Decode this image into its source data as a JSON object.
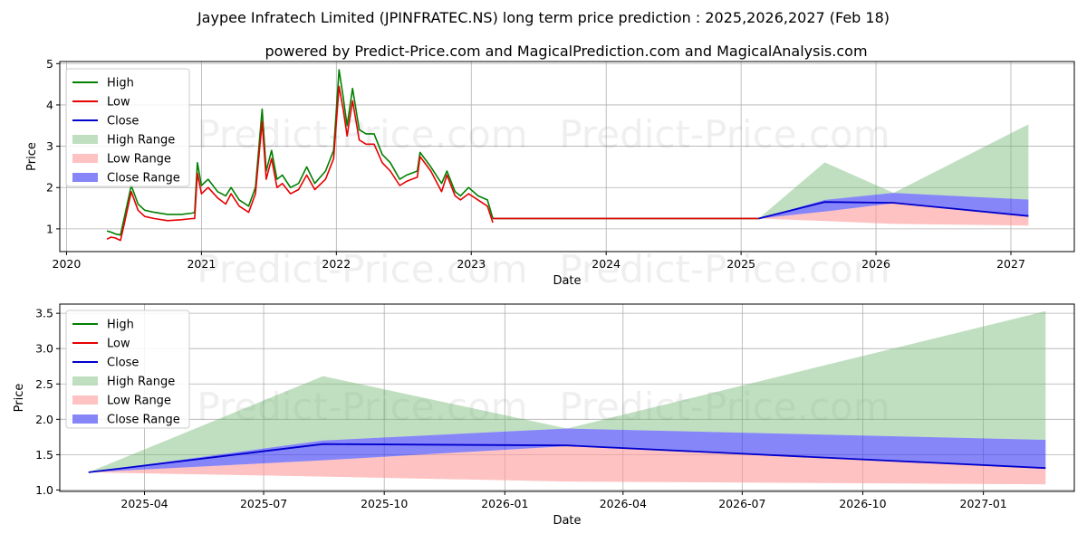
{
  "title_line1": "Jaypee Infratech Limited (JPINFRATEC.NS) long term price prediction : 2025,2026,2027 (Feb 18)",
  "title_line2": "powered by Predict-Price.com and MagicalPrediction.com and MagicalAnalysis.com",
  "watermark": "Predict-Price.com",
  "colors": {
    "high": "#008000",
    "low": "#e60000",
    "close": "#0000cc",
    "high_range": "#74b974",
    "low_range": "#ff9a9a",
    "close_range": "#3b3bf5",
    "grid": "#b0b0b0"
  },
  "legend": [
    "High",
    "Low",
    "Close",
    "High Range",
    "Low Range",
    "Close Range"
  ],
  "chart_data": [
    {
      "type": "line",
      "xlabel": "Date",
      "ylabel": "Price",
      "xlim": [
        2019.95,
        2027.47
      ],
      "ylim": [
        0.45,
        5.05
      ],
      "xticks": [
        2020,
        2021,
        2022,
        2023,
        2024,
        2025,
        2026,
        2027
      ],
      "xtick_labels": [
        "2020",
        "2021",
        "2022",
        "2023",
        "2024",
        "2025",
        "2026",
        "2027"
      ],
      "yticks": [
        1,
        2,
        3,
        4,
        5
      ],
      "ytick_labels": [
        "1",
        "2",
        "3",
        "4",
        "5"
      ],
      "history": {
        "x": [
          2020.3,
          2020.33,
          2020.36,
          2020.4,
          2020.43,
          2020.48,
          2020.53,
          2020.58,
          2020.65,
          2020.75,
          2020.85,
          2020.93,
          2020.95,
          2020.97,
          2021.0,
          2021.05,
          2021.12,
          2021.18,
          2021.22,
          2021.28,
          2021.35,
          2021.4,
          2021.45,
          2021.48,
          2021.52,
          2021.56,
          2021.6,
          2021.66,
          2021.72,
          2021.78,
          2021.84,
          2021.92,
          2021.98,
          2022.02,
          2022.05,
          2022.08,
          2022.12,
          2022.17,
          2022.22,
          2022.28,
          2022.34,
          2022.4,
          2022.47,
          2022.52,
          2022.6,
          2022.62,
          2022.7,
          2022.78,
          2022.82,
          2022.88,
          2022.92,
          2022.98,
          2023.05,
          2023.12,
          2023.16
        ],
        "high": [
          0.95,
          0.92,
          0.88,
          0.85,
          1.3,
          2.05,
          1.6,
          1.45,
          1.4,
          1.35,
          1.35,
          1.38,
          1.4,
          2.6,
          2.05,
          2.2,
          1.9,
          1.8,
          2.0,
          1.7,
          1.55,
          2.0,
          3.9,
          2.4,
          2.9,
          2.2,
          2.3,
          2.0,
          2.1,
          2.5,
          2.1,
          2.4,
          2.9,
          4.85,
          4.2,
          3.5,
          4.4,
          3.4,
          3.3,
          3.3,
          2.8,
          2.6,
          2.2,
          2.3,
          2.4,
          2.85,
          2.5,
          2.1,
          2.4,
          1.9,
          1.8,
          2.0,
          1.8,
          1.7,
          1.25
        ],
        "low": [
          0.75,
          0.8,
          0.78,
          0.72,
          1.15,
          1.9,
          1.45,
          1.3,
          1.25,
          1.2,
          1.22,
          1.25,
          1.25,
          2.35,
          1.85,
          2.0,
          1.75,
          1.6,
          1.85,
          1.55,
          1.4,
          1.85,
          3.6,
          2.2,
          2.7,
          2.0,
          2.1,
          1.85,
          1.95,
          2.3,
          1.95,
          2.2,
          2.7,
          4.45,
          3.9,
          3.25,
          4.1,
          3.15,
          3.05,
          3.05,
          2.6,
          2.4,
          2.05,
          2.15,
          2.25,
          2.75,
          2.4,
          1.9,
          2.3,
          1.8,
          1.7,
          1.85,
          1.7,
          1.55,
          1.15
        ]
      },
      "flat_price": 1.25,
      "forecast": {
        "x": [
          2025.13,
          2025.62,
          2026.13,
          2027.13
        ],
        "close": [
          1.25,
          1.65,
          1.63,
          1.31
        ],
        "high_range_upper": [
          1.25,
          2.61,
          1.87,
          3.53
        ],
        "high_range_lower": [
          1.25,
          1.7,
          1.87,
          1.71
        ],
        "low_range_upper": [
          1.25,
          1.42,
          1.62,
          1.31
        ],
        "low_range_lower": [
          1.25,
          1.19,
          1.12,
          1.08
        ],
        "close_range_upper": [
          1.25,
          1.7,
          1.87,
          1.71
        ],
        "close_range_lower": [
          1.25,
          1.42,
          1.62,
          1.31
        ]
      }
    },
    {
      "type": "area",
      "xlabel": "Date",
      "ylabel": "Price",
      "xlim": [
        2025.07,
        2027.19
      ],
      "ylim": [
        0.98,
        3.63
      ],
      "xticks": [
        2025.247,
        2025.496,
        2025.748,
        2026.0,
        2026.247,
        2026.496,
        2026.748,
        2027.0
      ],
      "xtick_labels": [
        "2025-04",
        "2025-07",
        "2025-10",
        "2026-01",
        "2026-04",
        "2026-07",
        "2026-10",
        "2027-01"
      ],
      "yticks": [
        1.0,
        1.5,
        2.0,
        2.5,
        3.0,
        3.5
      ],
      "ytick_labels": [
        "1.0",
        "1.5",
        "2.0",
        "2.5",
        "3.0",
        "3.5"
      ],
      "x": [
        2025.13,
        2025.62,
        2026.13,
        2027.13
      ],
      "close": [
        1.25,
        1.65,
        1.63,
        1.31
      ],
      "high_range_upper": [
        1.25,
        2.61,
        1.87,
        3.53
      ],
      "high_range_lower": [
        1.25,
        1.7,
        1.87,
        1.71
      ],
      "low_range_upper": [
        1.25,
        1.42,
        1.62,
        1.31
      ],
      "low_range_lower": [
        1.25,
        1.19,
        1.12,
        1.08
      ],
      "close_range_upper": [
        1.25,
        1.7,
        1.87,
        1.71
      ],
      "close_range_lower": [
        1.25,
        1.42,
        1.62,
        1.31
      ]
    }
  ]
}
